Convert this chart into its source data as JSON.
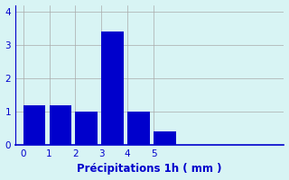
{
  "categories": [
    0,
    1,
    2,
    3,
    4,
    5
  ],
  "values": [
    1.2,
    1.2,
    1.0,
    3.4,
    1.0,
    0.4
  ],
  "bar_color": "#0000cc",
  "background_color": "#d8f4f4",
  "xlabel": "Précipitations 1h ( mm )",
  "xlabel_color": "#0000cc",
  "tick_color": "#0000cc",
  "grid_color": "#aaaaaa",
  "ylim": [
    0,
    4.2
  ],
  "xlim": [
    -0.3,
    10
  ],
  "yticks": [
    0,
    1,
    2,
    3,
    4
  ],
  "xticks": [
    0,
    1,
    2,
    3,
    4,
    5
  ],
  "bar_width": 0.85,
  "xlabel_fontsize": 8.5
}
